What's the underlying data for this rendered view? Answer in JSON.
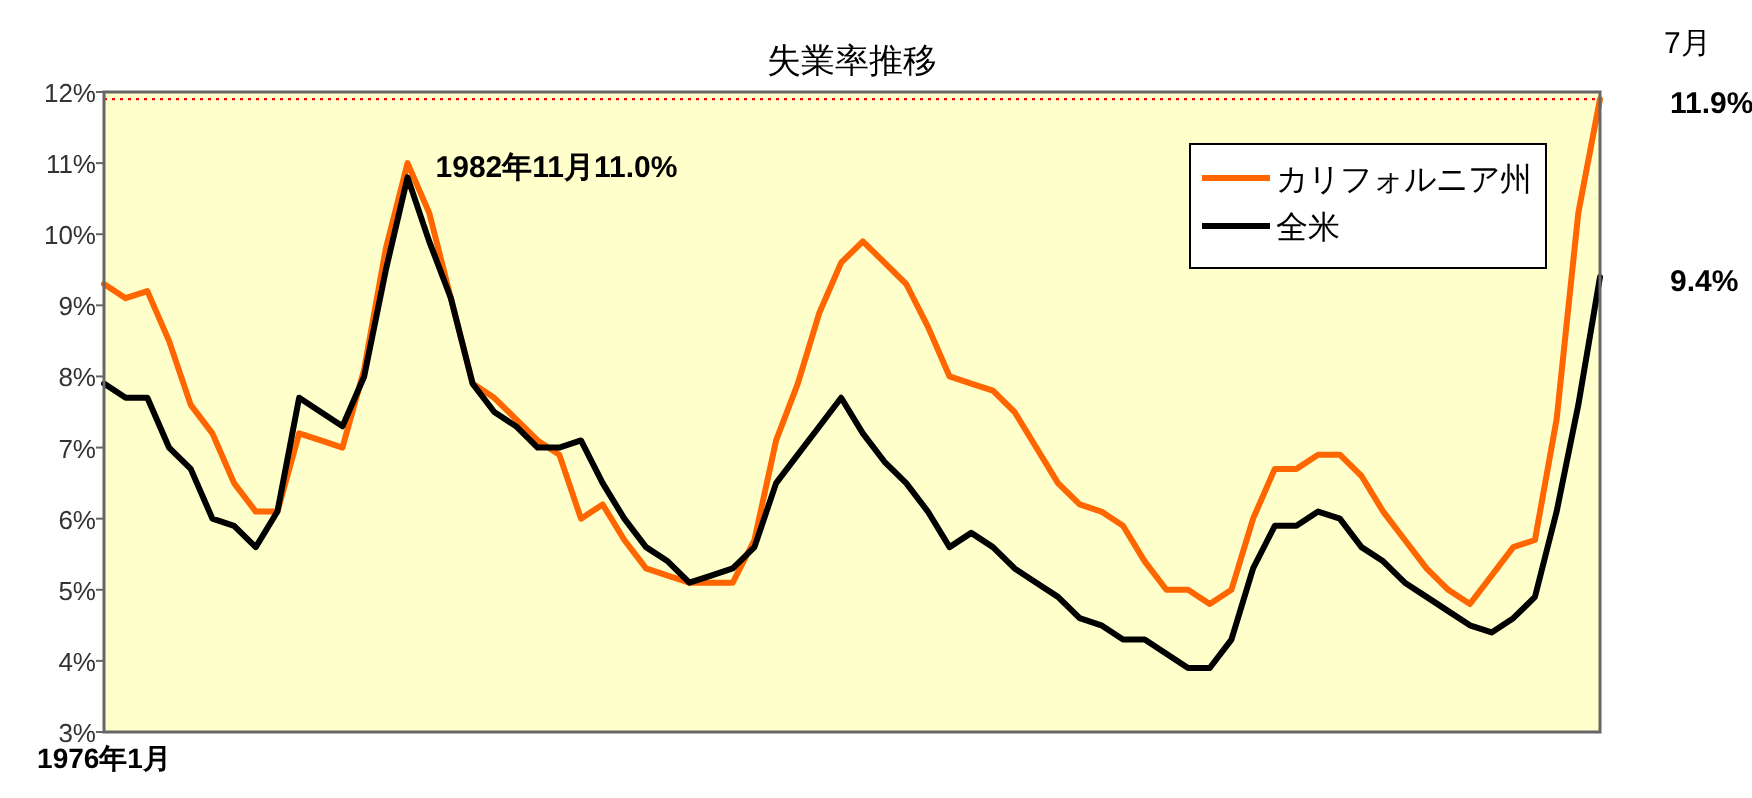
{
  "chart_data": {
    "type": "line",
    "title": "失業率推移",
    "categories": [
      null,
      null,
      null,
      null,
      null,
      null,
      null,
      null,
      null,
      null,
      null,
      null,
      null,
      null,
      null,
      null,
      null,
      null,
      null,
      null,
      null,
      null,
      null,
      null,
      null,
      null,
      null,
      null,
      null,
      null,
      null,
      null,
      null,
      null,
      null,
      null,
      null,
      null,
      null,
      null,
      null,
      null,
      null,
      null,
      null,
      null,
      null,
      null,
      null,
      null,
      null,
      null,
      null,
      null,
      null,
      null,
      null,
      null,
      null,
      null,
      null,
      null,
      null,
      null,
      null,
      null,
      null,
      null,
      null,
      null
    ],
    "tick_labels": "y",
    "ylim": [
      3,
      12
    ],
    "yticks": [
      {
        "value": 3,
        "label": "3%"
      },
      {
        "value": 4,
        "label": "4%"
      },
      {
        "value": 5,
        "label": "5%"
      },
      {
        "value": 6,
        "label": "6%"
      },
      {
        "value": 7,
        "label": "7%"
      },
      {
        "value": 8,
        "label": "8%"
      },
      {
        "value": 9,
        "label": "9%"
      },
      {
        "value": 10,
        "label": "10%"
      },
      {
        "value": 11,
        "label": "11%"
      },
      {
        "value": 12,
        "label": "12%"
      }
    ],
    "legend": "top right",
    "line_style": "solid",
    "ref_lines": [
      {
        "axis": "y",
        "value": 11.9,
        "color": "#ff0000",
        "line_style": "dotted"
      }
    ],
    "annotations": [
      "1982年11月11.0%",
      "11.9%",
      "7月",
      "9.4%",
      "1976年1月"
    ],
    "series": [
      {
        "name": "カリフォルニア州",
        "color": "#ff6600",
        "values": [
          9.3,
          9.1,
          9.2,
          8.5,
          7.6,
          7.2,
          6.5,
          6.1,
          6.1,
          7.2,
          7.1,
          7.0,
          8.1,
          9.8,
          11.0,
          10.3,
          9.1,
          7.9,
          7.7,
          7.4,
          7.1,
          6.9,
          6.0,
          6.2,
          5.7,
          5.3,
          5.2,
          5.1,
          5.1,
          5.1,
          5.7,
          7.1,
          7.9,
          8.9,
          9.6,
          9.9,
          9.6,
          9.3,
          8.7,
          8.0,
          7.9,
          7.8,
          7.5,
          7.0,
          6.5,
          6.2,
          6.1,
          5.9,
          5.4,
          5.0,
          5.0,
          4.8,
          5.0,
          6.0,
          6.7,
          6.7,
          6.9,
          6.9,
          6.6,
          6.1,
          5.7,
          5.3,
          5.0,
          4.8,
          5.2,
          5.6,
          5.7,
          7.4,
          10.3,
          11.9
        ]
      },
      {
        "name": "全米",
        "color": "#000000",
        "values": [
          7.9,
          7.7,
          7.7,
          7.0,
          6.7,
          6.0,
          5.9,
          5.6,
          6.1,
          7.7,
          7.5,
          7.3,
          8.0,
          9.5,
          10.8,
          9.9,
          9.1,
          7.9,
          7.5,
          7.3,
          7.0,
          7.0,
          7.1,
          6.5,
          6.0,
          5.6,
          5.4,
          5.1,
          5.2,
          5.3,
          5.6,
          6.5,
          6.9,
          7.3,
          7.7,
          7.2,
          6.8,
          6.5,
          6.1,
          5.6,
          5.8,
          5.6,
          5.3,
          5.1,
          4.9,
          4.6,
          4.5,
          4.3,
          4.3,
          4.1,
          3.9,
          3.9,
          4.3,
          5.3,
          5.9,
          5.9,
          6.1,
          6.0,
          5.6,
          5.4,
          5.1,
          4.9,
          4.7,
          4.5,
          4.4,
          4.6,
          4.9,
          6.1,
          7.6,
          9.4
        ]
      }
    ]
  }
}
